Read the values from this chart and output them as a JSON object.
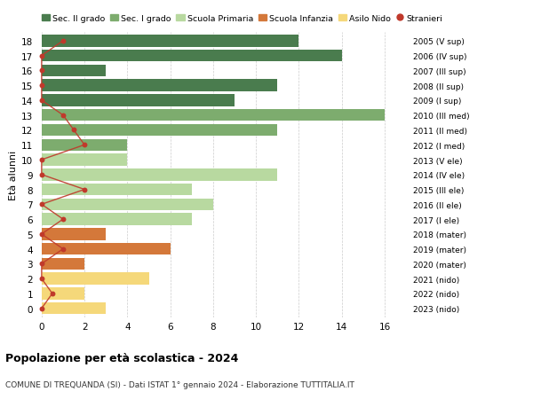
{
  "ages": [
    18,
    17,
    16,
    15,
    14,
    13,
    12,
    11,
    10,
    9,
    8,
    7,
    6,
    5,
    4,
    3,
    2,
    1,
    0
  ],
  "right_labels": [
    "2005 (V sup)",
    "2006 (IV sup)",
    "2007 (III sup)",
    "2008 (II sup)",
    "2009 (I sup)",
    "2010 (III med)",
    "2011 (II med)",
    "2012 (I med)",
    "2013 (V ele)",
    "2014 (IV ele)",
    "2015 (III ele)",
    "2016 (II ele)",
    "2017 (I ele)",
    "2018 (mater)",
    "2019 (mater)",
    "2020 (mater)",
    "2021 (nido)",
    "2022 (nido)",
    "2023 (nido)"
  ],
  "bar_values": [
    12,
    14,
    3,
    11,
    9,
    16,
    11,
    4,
    4,
    11,
    7,
    8,
    7,
    3,
    6,
    2,
    5,
    2,
    3
  ],
  "bar_colors": [
    "#4a7c4e",
    "#4a7c4e",
    "#4a7c4e",
    "#4a7c4e",
    "#4a7c4e",
    "#7dac6e",
    "#7dac6e",
    "#7dac6e",
    "#b8d9a0",
    "#b8d9a0",
    "#b8d9a0",
    "#b8d9a0",
    "#b8d9a0",
    "#d4783a",
    "#d4783a",
    "#d4783a",
    "#f5d87a",
    "#f5d87a",
    "#f5d87a"
  ],
  "stranieri_values": [
    1,
    0,
    0,
    0,
    0,
    1,
    1.5,
    2,
    0,
    0,
    2,
    0,
    1,
    0,
    1,
    0,
    0,
    0.5,
    0
  ],
  "stranieri_color": "#c0392b",
  "legend_labels": [
    "Sec. II grado",
    "Sec. I grado",
    "Scuola Primaria",
    "Scuola Infanzia",
    "Asilo Nido",
    "Stranieri"
  ],
  "legend_colors": [
    "#4a7c4e",
    "#7dac6e",
    "#b8d9a0",
    "#d4783a",
    "#f5d87a",
    "#c0392b"
  ],
  "title": "Popolazione per età scolastica - 2024",
  "subtitle": "COMUNE DI TREQUANDA (SI) - Dati ISTAT 1° gennaio 2024 - Elaborazione TUTTITALIA.IT",
  "ylabel": "Età alunni",
  "xlabel_vals": [
    0,
    2,
    4,
    6,
    8,
    10,
    12,
    14,
    16
  ],
  "xlim": [
    -0.2,
    17.2
  ],
  "ylim": [
    -0.6,
    18.6
  ],
  "background_color": "#ffffff",
  "grid_color": "#cccccc"
}
